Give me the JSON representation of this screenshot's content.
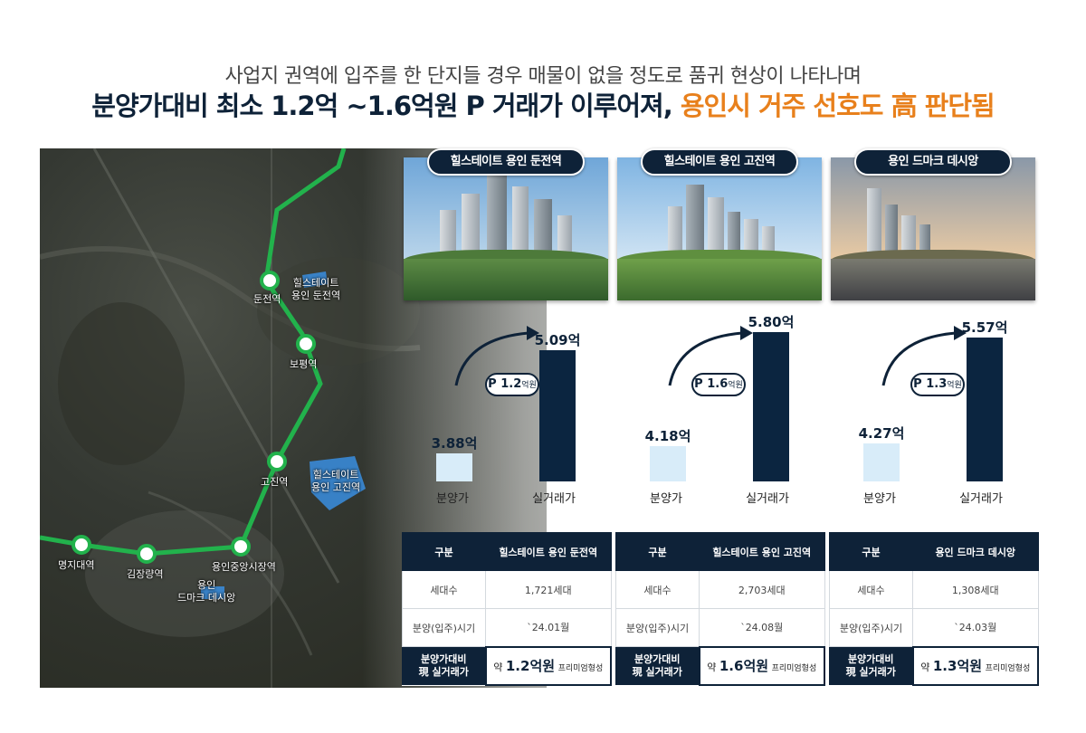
{
  "headline": {
    "sub": "사업지 권역에 입주를 한 단지들 경우 매물이 없을 정도로 품귀 현상이 나타나며",
    "main_prefix": "분양가대비 최소 1.2억 ~1.6억원 P 거래가 이루어져, ",
    "main_accent": "용인시 거주 선호도 高 판단됨"
  },
  "colors": {
    "navy": "#0e2238",
    "accent_orange": "#e8801c",
    "line_green": "#22b24c",
    "sale_bar": "#d8ecf9",
    "trade_bar": "#0b2540"
  },
  "map": {
    "stations": [
      "둔전역",
      "보평역",
      "고진역",
      "명지대역",
      "김장량역",
      "용인중앙시장역"
    ],
    "sites": [
      {
        "line1": "힐스테이트",
        "line2": "용인 둔전역"
      },
      {
        "line1": "힐스테이트",
        "line2": "용인 고진역"
      },
      {
        "line1": "용인",
        "line2": "드마크 데시앙"
      }
    ]
  },
  "projects": [
    {
      "name": "힐스테이트 용인 둔전역",
      "chart": {
        "sale_label": "3.88억",
        "trade_label": "5.09억",
        "premium_num": "P 1.2",
        "premium_unit": "억원",
        "cat_sale": "분양가",
        "cat_trade": "실거래가"
      },
      "table": {
        "h1": "구분",
        "h2": "힐스테이트 용인 둔전역",
        "r1_label": "세대수",
        "r1_value": "1,721세대",
        "r2_label": "분양(입주)시기",
        "r2_value": "`24.01월",
        "r3_label_1": "분양가대비",
        "r3_label_2": "現 실거래가",
        "r3_pre": "약",
        "r3_amount": "1.2억원",
        "r3_post": "프리미엄형성"
      }
    },
    {
      "name": "힐스테이트 용인 고진역",
      "chart": {
        "sale_label": "4.18억",
        "trade_label": "5.80억",
        "premium_num": "P 1.6",
        "premium_unit": "억원",
        "cat_sale": "분양가",
        "cat_trade": "실거래가"
      },
      "table": {
        "h1": "구분",
        "h2": "힐스테이트 용인 고진역",
        "r1_label": "세대수",
        "r1_value": "2,703세대",
        "r2_label": "분양(입주)시기",
        "r2_value": "`24.08월",
        "r3_label_1": "분양가대비",
        "r3_label_2": "現 실거래가",
        "r3_pre": "약",
        "r3_amount": "1.6억원",
        "r3_post": "프리미엄형성"
      }
    },
    {
      "name": "용인 드마크 데시앙",
      "chart": {
        "sale_label": "4.27억",
        "trade_label": "5.57억",
        "premium_num": "P 1.3",
        "premium_unit": "억원",
        "cat_sale": "분양가",
        "cat_trade": "실거래가"
      },
      "table": {
        "h1": "구분",
        "h2": "용인 드마크 데시앙",
        "r1_label": "세대수",
        "r1_value": "1,308세대",
        "r2_label": "분양(입주)시기",
        "r2_value": "`24.03월",
        "r3_label_1": "분양가대비",
        "r3_label_2": "現 실거래가",
        "r3_pre": "약",
        "r3_amount": "1.3억원",
        "r3_post": "프리미엄형성"
      }
    }
  ],
  "chart_data": [
    {
      "type": "bar",
      "categories": [
        "분양가",
        "실거래가"
      ],
      "values": [
        3.88,
        5.09
      ],
      "unit": "억"
    },
    {
      "type": "bar",
      "categories": [
        "분양가",
        "실거래가"
      ],
      "values": [
        4.18,
        5.8
      ],
      "unit": "억"
    },
    {
      "type": "bar",
      "categories": [
        "분양가",
        "실거래가"
      ],
      "values": [
        4.27,
        5.57
      ],
      "unit": "억"
    }
  ]
}
